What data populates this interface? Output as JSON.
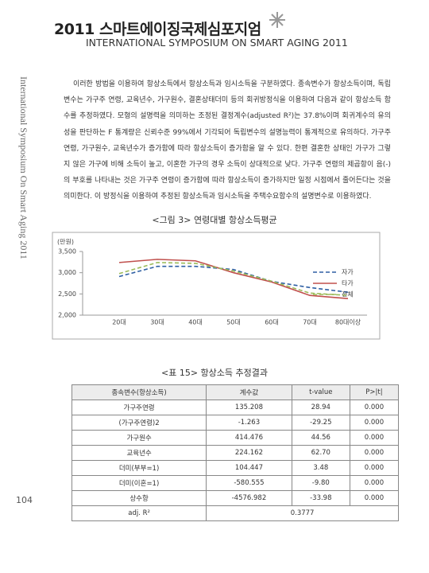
{
  "header": {
    "title": "2011 스마트에이징국제심포지엄",
    "subtitle": "INTERNATIONAL SYMPOSIUM ON SMART AGING 2011"
  },
  "side_text": "International Symposium On Smart Aging 2011",
  "body": {
    "paragraph": "이러한 방법을 이용하여 항상소득에서 항상소득과 임시소득을 구분하였다. 종속변수가 항상소득이며, 독립변수는 가구주 연령, 교육년수, 가구원수, 결혼상태더미 등의 회귀방정식을 이용하여 다음과 같이 항상소득 함수를 추정하였다. 모형의 설명력을 의미하는 조정된 결정계수(adjusted R²)는 37.8%이며 회귀계수의 유의성을 판단하는 F 통계량은 신뢰수준 99%에서 기각되어 독립변수의 설명능력이 통계적으로 유의하다. 가구주연령, 가구원수, 교육년수가 증가함에 따라 항상소득이 증가함을 알 수 있다. 한편 결혼한 상태인 가구가 그렇지 않은 가구에 비해 소득이 높고, 이혼한 가구의 경우 소득이 상대적으로 낮다. 가구주 연령의 제곱항이 음(-)의 부호를 나타내는 것은 가구주 연령이 증가함에 따라 항상소득이 증가하지만 일정 시점에서 줄어든다는 것을 의미한다. 이 방정식을 이용하여 추정된 항상소득과 임시소득을 주택수요함수의 설명변수로 이용하였다."
  },
  "chart_data": {
    "type": "line",
    "title": "<그림 3> 연령대별 항상소득평균",
    "y_label": "(만원)",
    "categories": [
      "20대",
      "30대",
      "40대",
      "50대",
      "60대",
      "70대",
      "80대이상"
    ],
    "series": [
      {
        "name": "자가",
        "color": "#2e5fa3",
        "dashed": true,
        "values": [
          2910,
          3150,
          3150,
          3075,
          2795,
          2650,
          2540
        ]
      },
      {
        "name": "타가",
        "color": "#c0504d",
        "dashed": false,
        "values": [
          3240,
          3315,
          3280,
          3000,
          2780,
          2465,
          2390
        ]
      },
      {
        "name": "전체",
        "color": "#9bbb59",
        "dashed": true,
        "values": [
          2980,
          3240,
          3220,
          3040,
          2800,
          2520,
          2465
        ]
      }
    ],
    "ylim": [
      2000,
      3500
    ],
    "yticks": [
      {
        "value": 2000,
        "label": "2,000"
      },
      {
        "value": 2500,
        "label": "2,500"
      },
      {
        "value": 3000,
        "label": "3,000"
      },
      {
        "value": 3500,
        "label": "3,500"
      }
    ],
    "legend": "right"
  },
  "table": {
    "caption": "<표 15> 항상소득 추정결과",
    "header": [
      "종속변수(항상소득)",
      "계수값",
      "t-value",
      "P>|t|"
    ],
    "rows": [
      [
        "가구주연령",
        "135.208",
        "28.94",
        "0.000"
      ],
      [
        "(가구주연령)2",
        "-1.263",
        "-29.25",
        "0.000"
      ],
      [
        "가구원수",
        "414.476",
        "44.56",
        "0.000"
      ],
      [
        "교육년수",
        "224.162",
        "62.70",
        "0.000"
      ],
      [
        "더미(부부=1)",
        "104.447",
        "3.48",
        "0.000"
      ],
      [
        "더미(이혼=1)",
        "-580.555",
        "-9.80",
        "0.000"
      ],
      [
        "상수항",
        "-4576.982",
        "-33.98",
        "0.000"
      ]
    ],
    "footer": [
      "adj. R²",
      "0.3777"
    ]
  },
  "page_number": "104"
}
